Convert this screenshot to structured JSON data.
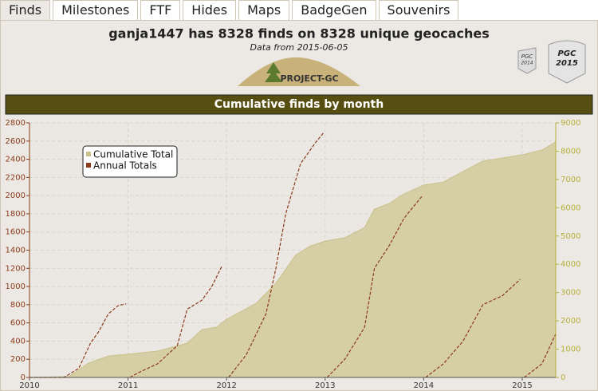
{
  "tabs": [
    "Finds",
    "Milestones",
    "FTF",
    "Hides",
    "Maps",
    "BadgeGen",
    "Souvenirs"
  ],
  "header": {
    "title": "ganja1447 has 8328 finds on 8328 unique geocaches",
    "subtitle": "Data from 2015-06-05",
    "logo": "PROJECT-GC",
    "badges": [
      {
        "line1": "PGC",
        "line2": "2014"
      },
      {
        "line1": "PGC",
        "line2": "2015"
      }
    ]
  },
  "chart_data": {
    "type": "line",
    "title": "Cumulative finds by month",
    "xlim": [
      2010,
      2015.34
    ],
    "xticks": [
      2010,
      2011,
      2012,
      2013,
      2014,
      2015
    ],
    "ylim": [
      0,
      2800
    ],
    "yticks": [
      0,
      200,
      400,
      600,
      800,
      1000,
      1200,
      1400,
      1600,
      1800,
      2000,
      2200,
      2400,
      2600,
      2800
    ],
    "y2lim": [
      0,
      9000
    ],
    "y2ticks": [
      0,
      1000,
      2000,
      3000,
      4000,
      5000,
      6000,
      7000,
      8000,
      9000
    ],
    "grid": true,
    "legend": "top-left",
    "series": [
      {
        "name": "Cumulative Total",
        "color": "#d6cfa6",
        "axis": "y2",
        "kind": "area",
        "x": [
          2010,
          2010.4,
          2010.6,
          2010.8,
          2011,
          2011.3,
          2011.6,
          2011.75,
          2011.9,
          2012,
          2012.3,
          2012.5,
          2012.7,
          2012.85,
          2013,
          2013.2,
          2013.4,
          2013.5,
          2013.65,
          2013.8,
          2014,
          2014.2,
          2014.4,
          2014.6,
          2014.8,
          2015,
          2015.2,
          2015.34
        ],
        "values": [
          0,
          30,
          510,
          760,
          820,
          930,
          1210,
          1690,
          1780,
          2060,
          2620,
          3330,
          4320,
          4650,
          4820,
          4940,
          5300,
          5950,
          6150,
          6490,
          6800,
          6910,
          7280,
          7650,
          7760,
          7870,
          8040,
          8328
        ]
      },
      {
        "name": "Annual Totals",
        "color": "#8b3a1a",
        "kind": "line",
        "x": [
          2010,
          2010.35,
          2010.5,
          2010.62,
          2010.7,
          2010.8,
          2010.9,
          2010.98,
          2011,
          2011.02,
          2011.1,
          2011.3,
          2011.5,
          2011.6,
          2011.75,
          2011.85,
          2011.95,
          2011.99,
          2012.02,
          2012.2,
          2012.4,
          2012.5,
          2012.6,
          2012.75,
          2012.9,
          2012.99,
          2013,
          2013.02,
          2013.2,
          2013.4,
          2013.5,
          2013.65,
          2013.8,
          2013.98,
          2014,
          2014.02,
          2014.2,
          2014.4,
          2014.6,
          2014.8,
          2014.98,
          2015,
          2015.02,
          2015.2,
          2015.34
        ],
        "values": [
          0,
          0,
          100,
          380,
          500,
          700,
          790,
          810,
          null,
          0,
          50,
          150,
          350,
          750,
          850,
          1000,
          1220,
          null,
          0,
          250,
          700,
          1200,
          1800,
          2350,
          2580,
          2700,
          null,
          0,
          200,
          550,
          1200,
          1450,
          1750,
          1990,
          null,
          0,
          150,
          400,
          800,
          900,
          1080,
          null,
          0,
          150,
          480
        ]
      }
    ]
  }
}
